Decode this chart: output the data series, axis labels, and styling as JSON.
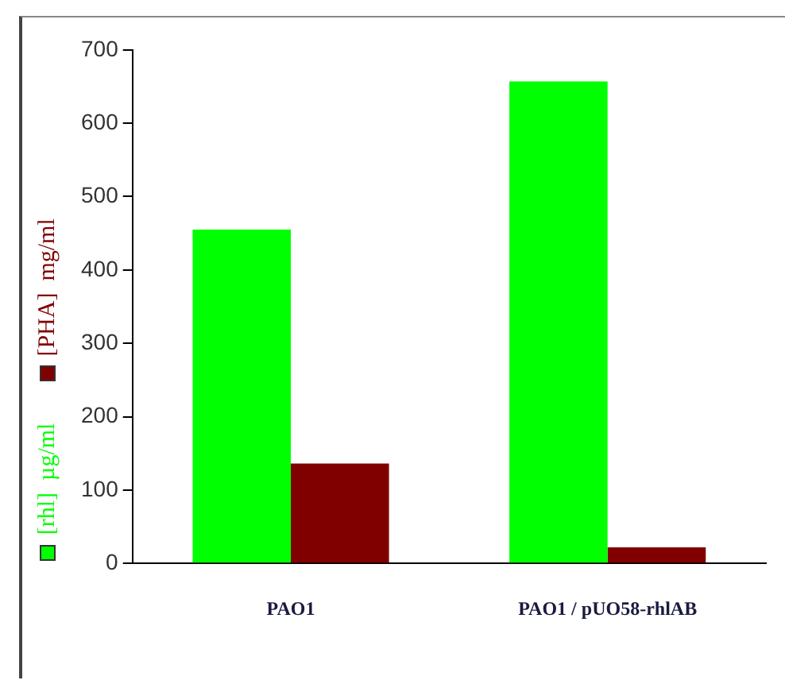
{
  "chart_data": {
    "type": "bar",
    "categories": [
      "PAO1",
      "PAO1 / pUO58-rhlAB"
    ],
    "series": [
      {
        "name": "[rhl]  µg/ml",
        "color": "#00ff00",
        "values": [
          455,
          657
        ]
      },
      {
        "name": "[PHA]  mg/ml",
        "color": "#800000",
        "values": [
          136,
          22
        ]
      }
    ],
    "ylim": [
      0,
      700
    ],
    "yticks": [
      0,
      100,
      200,
      300,
      400,
      500,
      600,
      700
    ],
    "grid": false,
    "legend": "left"
  }
}
